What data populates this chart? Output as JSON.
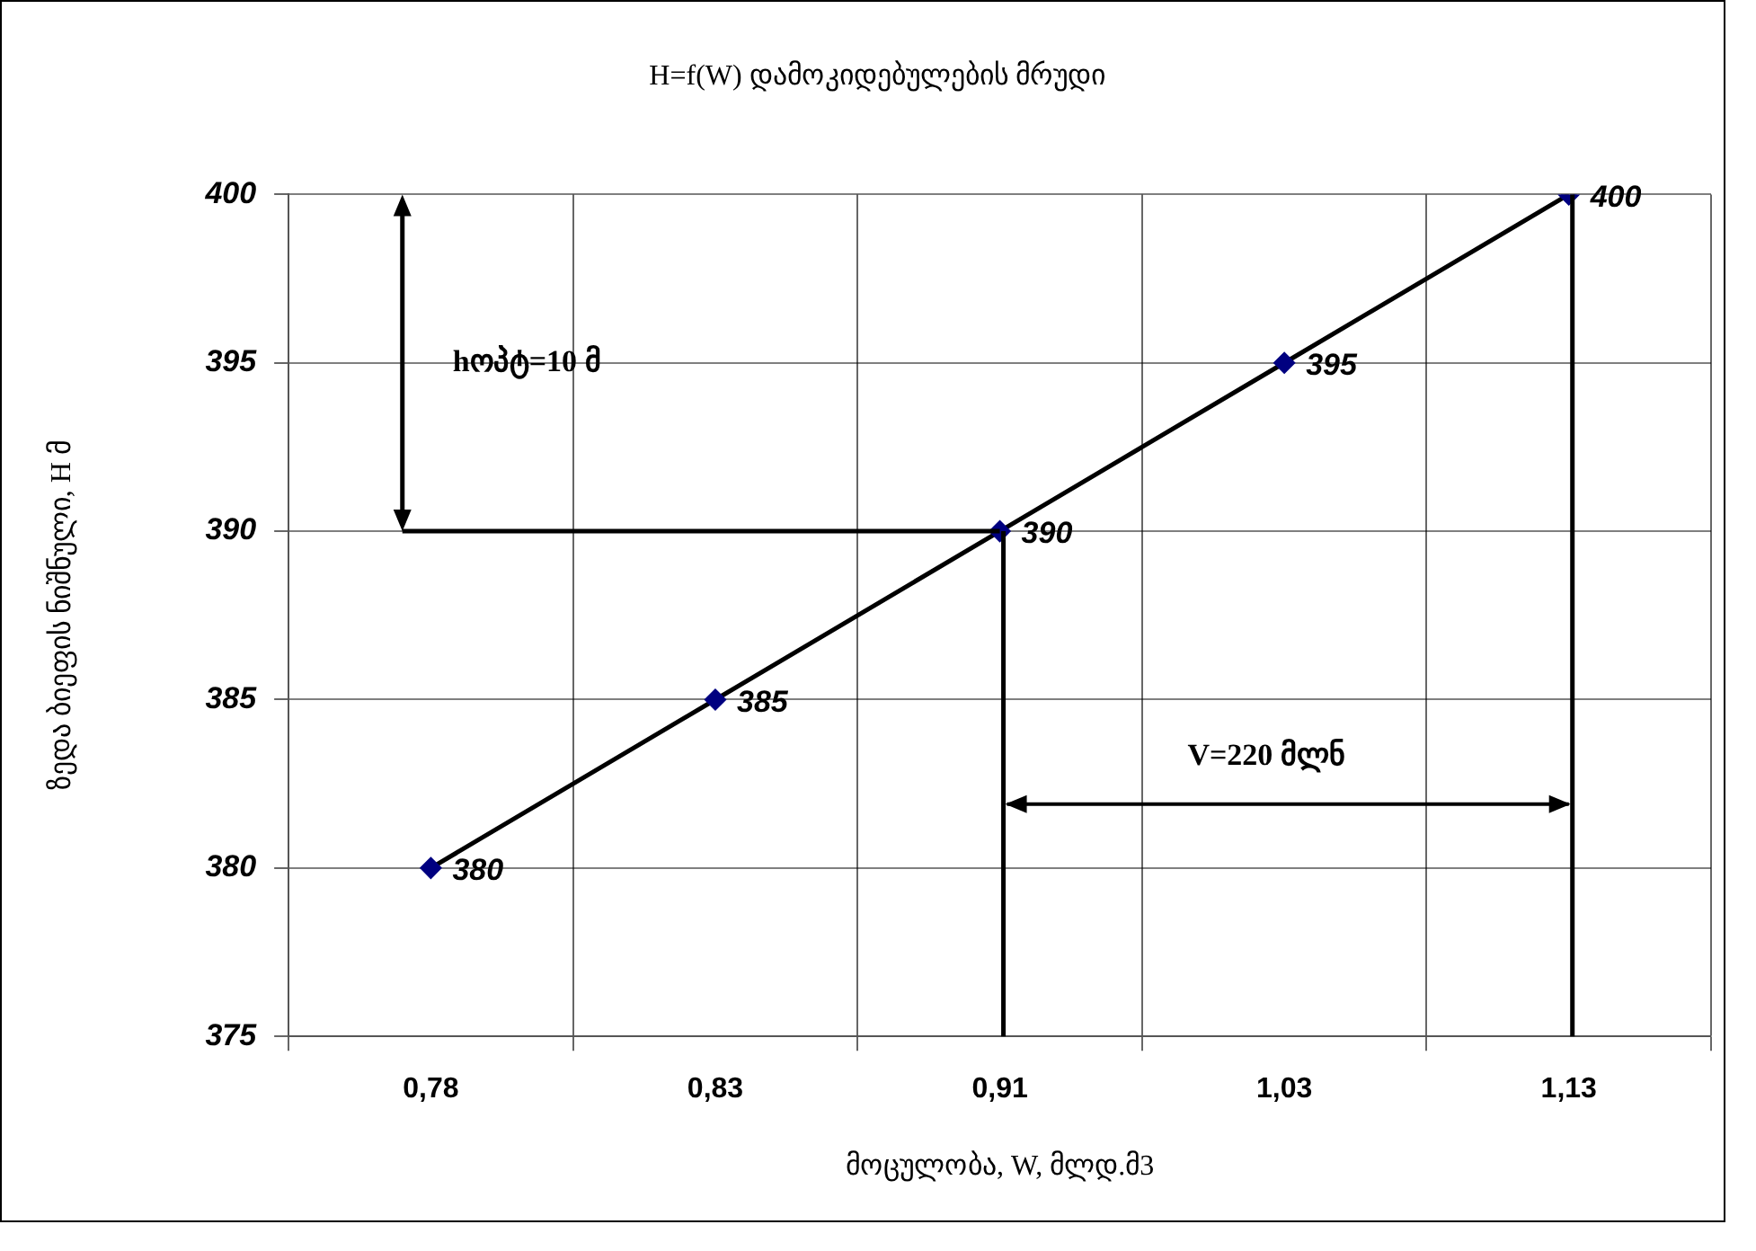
{
  "chart_data": {
    "type": "line",
    "title": "H=f(W) დამოკიდებულების მრუდი",
    "xlabel": "მოცულობა, W, მლდ.მ3",
    "ylabel": "ზედა ბიეფის ნიშნული, H მ",
    "categories": [
      "0,78",
      "0,83",
      "0,91",
      "1,03",
      "1,13"
    ],
    "series": [
      {
        "color": "#000080",
        "values": [
          380,
          385,
          390,
          395,
          400
        ]
      }
    ],
    "ylim": [
      375,
      400
    ],
    "yticks": [
      375,
      380,
      385,
      390,
      395,
      400
    ],
    "grid": true,
    "marker": "diamond",
    "line_style": "solid",
    "data_labels": true,
    "legend": false,
    "ref_lines": [
      {
        "axis": "x",
        "value": "1,13",
        "color": "#000000",
        "line_style": "solid"
      }
    ],
    "annotations": [
      "hოპტ=10 მ",
      "V=220 მლნ"
    ]
  }
}
